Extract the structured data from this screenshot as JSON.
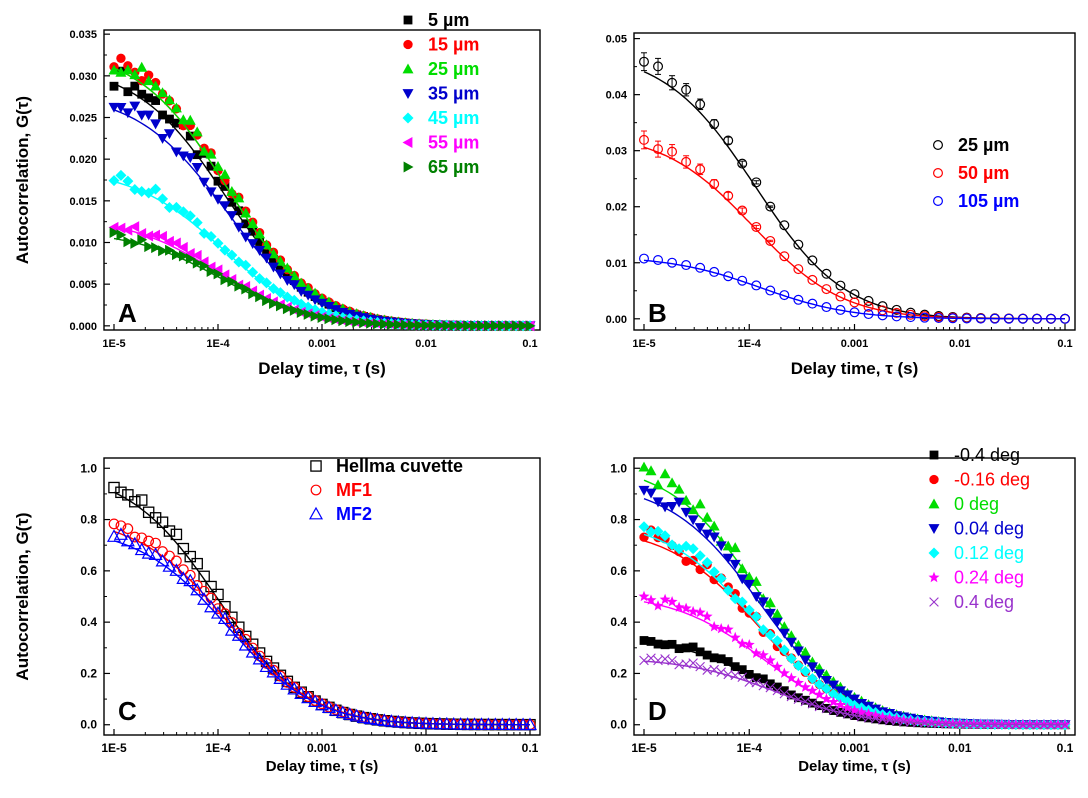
{
  "chart_data": [
    {
      "type": "scatter",
      "panel": "A",
      "xlabel": "Delay time, τ (s)",
      "ylabel": "Autocorrelation, G(τ)",
      "xscale": "log",
      "xlim": [
        1e-05,
        0.1
      ],
      "ylim": [
        -0.0005,
        0.0355
      ],
      "xticks": [
        1e-05,
        0.0001,
        0.001,
        0.01,
        0.1
      ],
      "xtick_labels": [
        "1E-5",
        "1E-4",
        "0.001",
        "0.01",
        "0.1"
      ],
      "yticks": [
        0,
        0.005,
        0.01,
        0.015,
        0.02,
        0.025,
        0.03,
        0.035
      ],
      "ytick_labels": [
        "0.000",
        "0.005",
        "0.010",
        "0.015",
        "0.020",
        "0.025",
        "0.030",
        "0.035"
      ],
      "legend_position": "top-right",
      "series": [
        {
          "name": "5 µm",
          "color": "#000000",
          "marker": "square",
          "g0": 0.0325,
          "tau": 0.00012
        },
        {
          "name": "15 µm",
          "color": "#ff0000",
          "marker": "circle",
          "g0": 0.0345,
          "tau": 0.000125
        },
        {
          "name": "25 µm",
          "color": "#00dd00",
          "marker": "triangle-up",
          "g0": 0.0345,
          "tau": 0.000125
        },
        {
          "name": "35 µm",
          "color": "#0000cc",
          "marker": "triangle-down",
          "g0": 0.029,
          "tau": 0.00012
        },
        {
          "name": "45 µm",
          "color": "#00ffff",
          "marker": "diamond",
          "g0": 0.0195,
          "tau": 0.00011
        },
        {
          "name": "55 µm",
          "color": "#ff00ff",
          "marker": "triangle-left",
          "g0": 0.0135,
          "tau": 0.0001
        },
        {
          "name": "65 µm",
          "color": "#008000",
          "marker": "triangle-right",
          "g0": 0.0118,
          "tau": 0.00011
        }
      ],
      "panel_label": "A"
    },
    {
      "type": "scatter",
      "panel": "B",
      "xlabel": "Delay time, τ (s)",
      "ylabel": "",
      "xscale": "log",
      "xlim": [
        1e-05,
        0.1
      ],
      "ylim": [
        -0.002,
        0.051
      ],
      "xticks": [
        1e-05,
        0.0001,
        0.001,
        0.01,
        0.1
      ],
      "xtick_labels": [
        "1E-5",
        "1E-4",
        "0.001",
        "0.01",
        "0.1"
      ],
      "yticks": [
        0,
        0.01,
        0.02,
        0.03,
        0.04,
        0.05
      ],
      "ytick_labels": [
        "0.00",
        "0.01",
        "0.02",
        "0.03",
        "0.04",
        "0.05"
      ],
      "legend_position": "top-right",
      "series": [
        {
          "name": "25 µm",
          "color": "#000000",
          "marker": "open-circle",
          "g0": 0.0495,
          "tau": 0.000115,
          "errorbars": true
        },
        {
          "name": "50 µm",
          "color": "#ff0000",
          "marker": "open-circle",
          "g0": 0.0345,
          "tau": 0.00011,
          "errorbars": true
        },
        {
          "name": "105 µm",
          "color": "#0000ff",
          "marker": "open-circle",
          "g0": 0.0116,
          "tau": 0.00013,
          "errorbars": false
        }
      ],
      "panel_label": "B"
    },
    {
      "type": "scatter",
      "panel": "C",
      "xlabel": "Delay time, τ (s)",
      "ylabel": "Autocorrelation, G(τ)",
      "xscale": "log",
      "xlim": [
        1e-05,
        0.1
      ],
      "ylim": [
        -0.04,
        1.04
      ],
      "xticks": [
        1e-05,
        0.0001,
        0.001,
        0.01,
        0.1
      ],
      "xtick_labels": [
        "1E-5",
        "1E-4",
        "0.001",
        "0.01",
        "0.1"
      ],
      "yticks": [
        0,
        0.2,
        0.4,
        0.6,
        0.8,
        1.0
      ],
      "ytick_labels": [
        "0.0",
        "0.2",
        "0.4",
        "0.6",
        "0.8",
        "1.0"
      ],
      "legend_position": "top-right",
      "series": [
        {
          "name": "Hellma cuvette",
          "color": "#000000",
          "marker": "open-square",
          "g0": 1.03,
          "tau": 0.0001
        },
        {
          "name": "MF1",
          "color": "#ff0000",
          "marker": "open-circle",
          "g0": 0.84,
          "tau": 0.000125
        },
        {
          "name": "MF2",
          "color": "#0000ff",
          "marker": "open-triangle",
          "g0": 0.8,
          "tau": 0.000125
        }
      ],
      "panel_label": "C"
    },
    {
      "type": "scatter",
      "panel": "D",
      "xlabel": "Delay time, τ (s)",
      "ylabel": "",
      "xscale": "log",
      "xlim": [
        1e-05,
        0.1
      ],
      "ylim": [
        -0.04,
        1.04
      ],
      "xticks": [
        1e-05,
        0.0001,
        0.001,
        0.01,
        0.1
      ],
      "xtick_labels": [
        "1E-5",
        "1E-4",
        "0.001",
        "0.01",
        "0.1"
      ],
      "yticks": [
        0,
        0.2,
        0.4,
        0.6,
        0.8,
        1.0
      ],
      "ytick_labels": [
        "0.0",
        "0.2",
        "0.4",
        "0.6",
        "0.8",
        "1.0"
      ],
      "legend_position": "top-right",
      "series": [
        {
          "name": "-0.4 deg",
          "color": "#000000",
          "marker": "square",
          "g0": 0.36,
          "tau": 0.00013
        },
        {
          "name": "-0.16 deg",
          "color": "#ff0000",
          "marker": "circle",
          "g0": 0.8,
          "tau": 0.000125
        },
        {
          "name": "0 deg",
          "color": "#00dd00",
          "marker": "triangle-up",
          "g0": 1.06,
          "tau": 0.00013
        },
        {
          "name": "0.04 deg",
          "color": "#0000cc",
          "marker": "triangle-down",
          "g0": 0.98,
          "tau": 0.00013
        },
        {
          "name": "0.12 deg",
          "color": "#00ffff",
          "marker": "diamond",
          "g0": 0.83,
          "tau": 0.00012
        },
        {
          "name": "0.24 deg",
          "color": "#ff00ff",
          "marker": "star",
          "g0": 0.53,
          "tau": 0.00014
        },
        {
          "name": "0.4 deg",
          "color": "#9933cc",
          "marker": "cross",
          "g0": 0.27,
          "tau": 0.00018
        }
      ],
      "panel_label": "D"
    }
  ]
}
